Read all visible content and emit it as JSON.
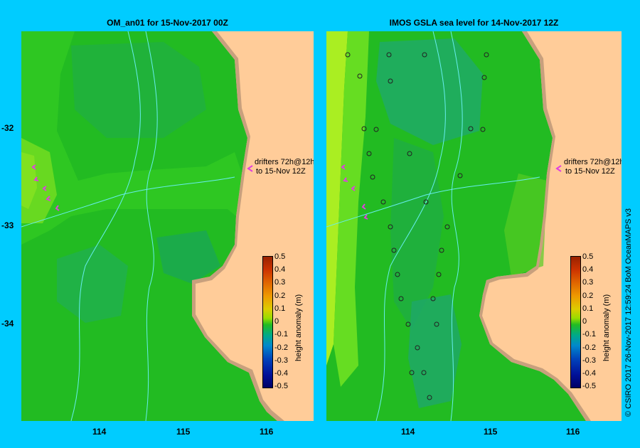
{
  "left_panel": {
    "title": "OM_an01  for 15-Nov-2017 00Z",
    "drifter_label_1": "drifters 72h@12h",
    "drifter_label_2": "to 15-Nov 12Z"
  },
  "right_panel": {
    "title": "IMOS GSLA sea level  for 14-Nov-2017 12Z",
    "drifter_label_1": "drifters 72h@12h",
    "drifter_label_2": "to 15-Nov 12Z"
  },
  "y_axis": {
    "ticks": [
      "-32",
      "-33",
      "-34"
    ]
  },
  "x_axis": {
    "ticks": [
      "114",
      "115",
      "116"
    ]
  },
  "colorbar": {
    "title": "height anomaly (m)",
    "ticks": [
      "0.5",
      "0.4",
      "0.3",
      "0.2",
      "0.1",
      "0",
      "-0.1",
      "-0.2",
      "-0.3",
      "-0.4",
      "-0.5"
    ],
    "colors": [
      "#b22000",
      "#cc3300",
      "#dd6600",
      "#ee9900",
      "#ddcc00",
      "#99dd00",
      "#00bb33",
      "#00aa99",
      "#0077cc",
      "#0033aa",
      "#000066"
    ]
  },
  "credit": "© CSIRO 2017   26-Nov-2017 12:59:24 BoM OceanMAPS v3",
  "colors": {
    "background": "#00ccff",
    "land": "#ffcc99",
    "shelf": "#c8a07d",
    "drifter": "#e040e0",
    "isobath": "#66eeee"
  }
}
